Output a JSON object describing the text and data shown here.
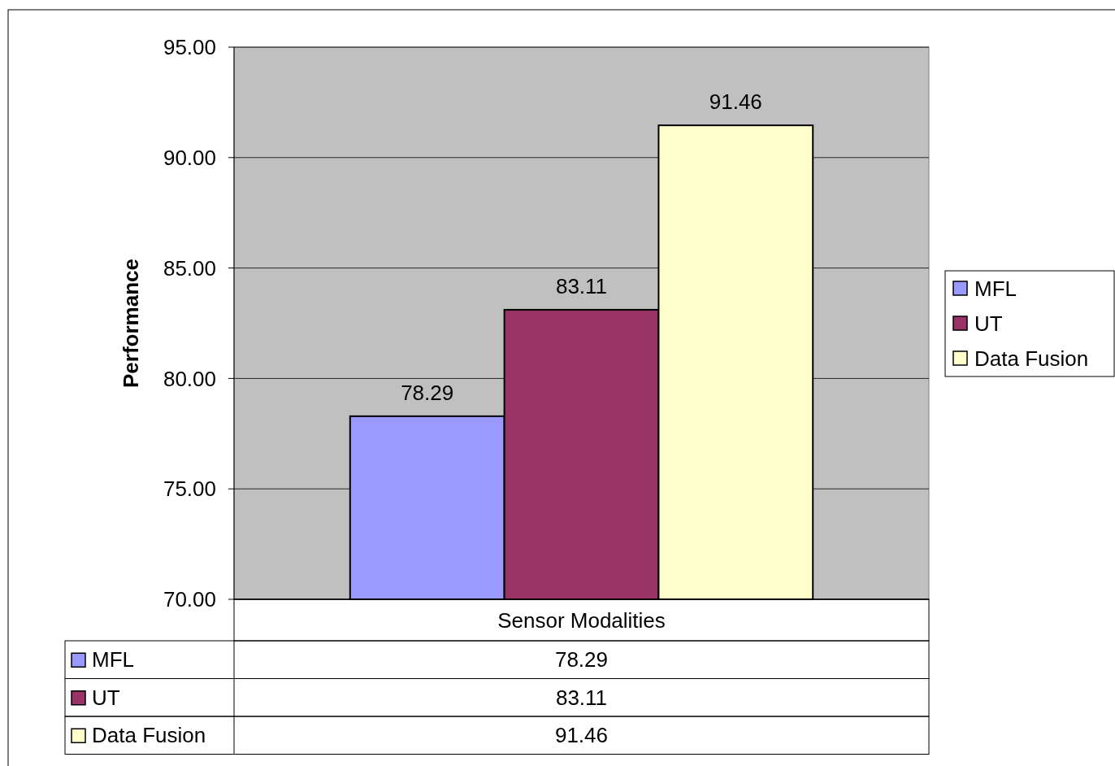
{
  "chart_data": {
    "type": "bar",
    "ylabel": "Performance",
    "categories": [
      "Sensor Modalities"
    ],
    "series": [
      {
        "name": "MFL",
        "color": "#9999ff",
        "values": [
          78.29
        ]
      },
      {
        "name": "UT",
        "color": "#993366",
        "values": [
          83.11
        ]
      },
      {
        "name": "Data Fusion",
        "color": "#ffffcc",
        "values": [
          91.46
        ]
      }
    ],
    "annotations": [
      "78.29",
      "83.11",
      "91.46"
    ],
    "ylim": [
      70,
      95
    ],
    "yticks": [
      {
        "value": 70,
        "label": "70.00"
      },
      {
        "value": 75,
        "label": "75.00"
      },
      {
        "value": 80,
        "label": "80.00"
      },
      {
        "value": 85,
        "label": "85.00"
      },
      {
        "value": 90,
        "label": "90.00"
      },
      {
        "value": 95,
        "label": "95.00"
      }
    ],
    "grid": "y",
    "legend": "right",
    "data_labels": true
  }
}
